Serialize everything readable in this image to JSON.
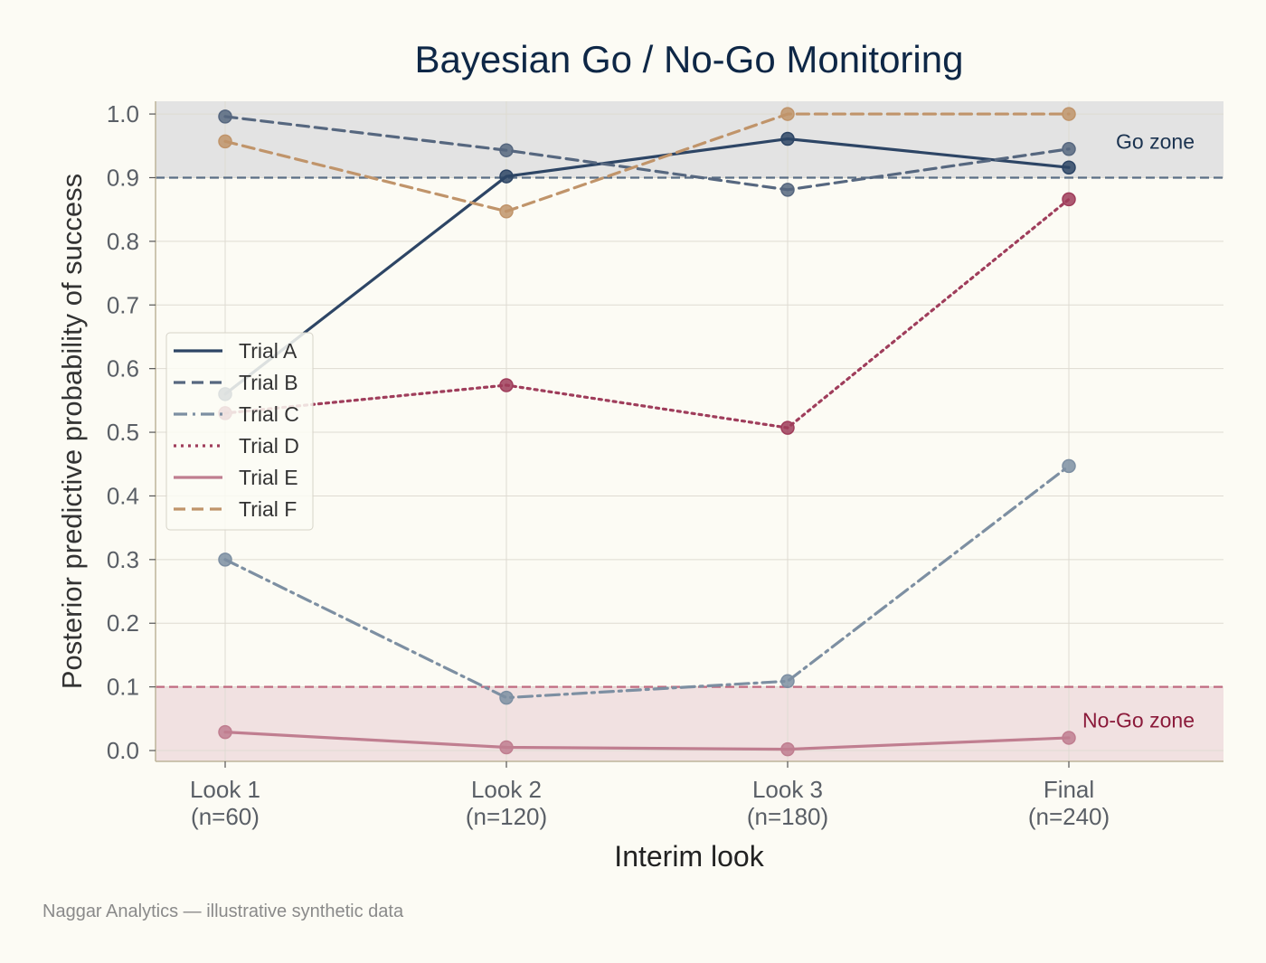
{
  "chart_data": {
    "type": "line",
    "title": "Bayesian Go / No-Go Monitoring",
    "xlabel": "Interim look",
    "ylabel": "Posterior predictive probability of success",
    "categories": [
      "Look 1\n(n=60)",
      "Look 2\n(n=120)",
      "Look 3\n(n=180)",
      "Final\n(n=240)"
    ],
    "ylim": [
      -0.017,
      1.02
    ],
    "yticks": [
      "0.0",
      "0.1",
      "0.2",
      "0.3",
      "0.4",
      "0.5",
      "0.6",
      "0.7",
      "0.8",
      "0.9",
      "1.0"
    ],
    "grid": true,
    "legend_position": "center-left",
    "thresholds": [
      {
        "label": "Go zone",
        "value": 0.9,
        "range": [
          0.9,
          1.02
        ],
        "color": "#5a6e85",
        "fill": "#e3e3e3",
        "label_color": "#1b3350"
      },
      {
        "label": "No-Go zone",
        "value": 0.1,
        "range": [
          -0.017,
          0.1
        ],
        "color": "#c06a80",
        "fill": "#f1e1e1",
        "label_color": "#8b1a3a"
      }
    ],
    "series": [
      {
        "name": "Trial A",
        "values": [
          0.56,
          0.902,
          0.961,
          0.916
        ],
        "color": "#2d4565",
        "dash": "solid"
      },
      {
        "name": "Trial B",
        "values": [
          0.996,
          0.943,
          0.881,
          0.945
        ],
        "color": "#56677f",
        "dash": "dashed"
      },
      {
        "name": "Trial C",
        "values": [
          0.3,
          0.083,
          0.109,
          0.447
        ],
        "color": "#7d8fa2",
        "dash": "dashdot"
      },
      {
        "name": "Trial D",
        "values": [
          0.53,
          0.574,
          0.507,
          0.866
        ],
        "color": "#9f3d5b",
        "dash": "dotted"
      },
      {
        "name": "Trial E",
        "values": [
          0.029,
          0.005,
          0.002,
          0.02
        ],
        "color": "#c07e90",
        "dash": "solid"
      },
      {
        "name": "Trial F",
        "values": [
          0.957,
          0.847,
          1.0,
          1.0
        ],
        "color": "#c0946a",
        "dash": "dashed"
      }
    ]
  },
  "footer": "Naggar Analytics — illustrative synthetic data"
}
